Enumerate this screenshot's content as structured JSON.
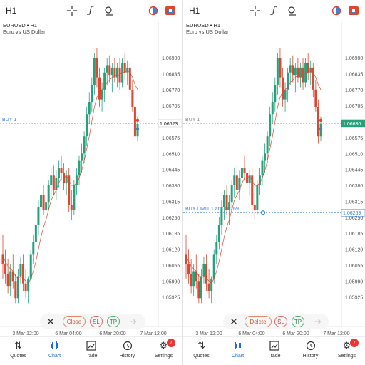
{
  "screens": [
    {
      "timeframe": "H1",
      "symbol": "EURUSD • H1",
      "description": "Euro vs US Dollar",
      "buy_line_label": "BUY 1",
      "buy_limit_label": "",
      "current_price_label": "1.06623",
      "buy_limit_price_label": "",
      "actions": {
        "primary": "Close",
        "sl": "SL",
        "tp": "TP"
      }
    },
    {
      "timeframe": "H1",
      "symbol": "EURUSD • H1",
      "description": "Euro vs US Dollar",
      "buy_line_label": "BUY 1",
      "buy_limit_label": "BUY LIMIT 1 at 1.06269",
      "current_price_label": "1.06630",
      "buy_limit_price_label": "1.06269",
      "actions": {
        "primary": "Delete",
        "sl": "SL",
        "tp": "TP"
      }
    }
  ],
  "nav": {
    "items": [
      {
        "label": "Quotes",
        "icon": "quotes-icon"
      },
      {
        "label": "Chart",
        "icon": "chart-icon"
      },
      {
        "label": "Trade",
        "icon": "trade-icon"
      },
      {
        "label": "History",
        "icon": "history-icon"
      },
      {
        "label": "Settings",
        "icon": "settings-icon"
      }
    ],
    "active": "Chart",
    "settings_badge": "7"
  },
  "colors": {
    "bull": "#26a17b",
    "bear": "#e0452f",
    "buy_line": "#3b82d6",
    "ma_line": "#e0452f",
    "price_box": "#26a17b",
    "accent": "#1f6ed4"
  },
  "chart_data": {
    "type": "candlestick",
    "y_tick_labels": [
      "1.06900",
      "1.06835",
      "1.06770",
      "1.06705",
      "1.06640",
      "1.06575",
      "1.06510",
      "1.06445",
      "1.06380",
      "1.06315",
      "1.06250",
      "1.06185",
      "1.06120",
      "1.06055",
      "1.05990",
      "1.05925"
    ],
    "x_tick_labels": [
      "3 Mar 12:00",
      "6 Mar 04:00",
      "6 Mar 20:00",
      "7 Mar 12:00"
    ],
    "ylim": [
      1.0586,
      1.0697
    ],
    "buy_price": 1.06633,
    "buy_limit_price": 1.06269,
    "ohlc": [
      [
        1.061,
        1.0618,
        1.06,
        1.0606
      ],
      [
        1.0606,
        1.0612,
        1.0598,
        1.0602
      ],
      [
        1.0602,
        1.0608,
        1.0594,
        1.0597
      ],
      [
        1.0597,
        1.0606,
        1.0593,
        1.0603
      ],
      [
        1.0603,
        1.061,
        1.0596,
        1.0599
      ],
      [
        1.0599,
        1.0602,
        1.059,
        1.0592
      ],
      [
        1.0592,
        1.0604,
        1.059,
        1.0601
      ],
      [
        1.0601,
        1.0609,
        1.0598,
        1.0606
      ],
      [
        1.0606,
        1.061,
        1.0595,
        1.0598
      ],
      [
        1.0598,
        1.0604,
        1.0592,
        1.0595
      ],
      [
        1.0595,
        1.0601,
        1.059,
        1.06
      ],
      [
        1.06,
        1.0612,
        1.0598,
        1.061
      ],
      [
        1.061,
        1.0618,
        1.0606,
        1.0615
      ],
      [
        1.0615,
        1.0625,
        1.0612,
        1.0622
      ],
      [
        1.0622,
        1.0632,
        1.0618,
        1.0629
      ],
      [
        1.0629,
        1.0636,
        1.0624,
        1.0634
      ],
      [
        1.0634,
        1.0638,
        1.0626,
        1.0628
      ],
      [
        1.0628,
        1.0634,
        1.0622,
        1.0631
      ],
      [
        1.0631,
        1.064,
        1.0628,
        1.0638
      ],
      [
        1.0638,
        1.0645,
        1.0633,
        1.0642
      ],
      [
        1.0642,
        1.0646,
        1.0634,
        1.0636
      ],
      [
        1.0636,
        1.0644,
        1.0632,
        1.0641
      ],
      [
        1.0641,
        1.0648,
        1.0637,
        1.0645
      ],
      [
        1.0645,
        1.065,
        1.064,
        1.0643
      ],
      [
        1.0643,
        1.0647,
        1.0636,
        1.0639
      ],
      [
        1.0639,
        1.0644,
        1.0634,
        1.0642
      ],
      [
        1.0642,
        1.0645,
        1.0627,
        1.063
      ],
      [
        1.063,
        1.0636,
        1.0624,
        1.0628
      ],
      [
        1.0628,
        1.064,
        1.0626,
        1.0638
      ],
      [
        1.0638,
        1.0645,
        1.0634,
        1.0642
      ],
      [
        1.0642,
        1.065,
        1.0638,
        1.0648
      ],
      [
        1.0648,
        1.0655,
        1.0643,
        1.0651
      ],
      [
        1.0651,
        1.066,
        1.0647,
        1.0658
      ],
      [
        1.0658,
        1.067,
        1.0654,
        1.0667
      ],
      [
        1.0667,
        1.0676,
        1.0663,
        1.0672
      ],
      [
        1.0672,
        1.0682,
        1.0668,
        1.0679
      ],
      [
        1.0679,
        1.0692,
        1.0675,
        1.069
      ],
      [
        1.069,
        1.0694,
        1.0678,
        1.0682
      ],
      [
        1.0682,
        1.0686,
        1.067,
        1.0673
      ],
      [
        1.0673,
        1.068,
        1.0668,
        1.0677
      ],
      [
        1.0677,
        1.0686,
        1.0672,
        1.0684
      ],
      [
        1.0684,
        1.069,
        1.0679,
        1.0687
      ],
      [
        1.0687,
        1.0691,
        1.068,
        1.0683
      ],
      [
        1.0683,
        1.0688,
        1.0676,
        1.0686
      ],
      [
        1.0686,
        1.069,
        1.068,
        1.0682
      ],
      [
        1.0682,
        1.0688,
        1.0678,
        1.0686
      ],
      [
        1.0686,
        1.069,
        1.0677,
        1.068
      ],
      [
        1.068,
        1.069,
        1.0678,
        1.0688
      ],
      [
        1.0688,
        1.0692,
        1.0681,
        1.0684
      ],
      [
        1.0684,
        1.0689,
        1.0679,
        1.0686
      ],
      [
        1.0686,
        1.0688,
        1.0674,
        1.0677
      ],
      [
        1.0677,
        1.0681,
        1.0668,
        1.067
      ],
      [
        1.067,
        1.0673,
        1.0655,
        1.0658
      ],
      [
        1.0658,
        1.0666,
        1.0656,
        1.0663
      ]
    ],
    "ma": [
      1.0609,
      1.0607,
      1.0605,
      1.0604,
      1.0603,
      1.0601,
      1.06,
      1.0601,
      1.06,
      1.0599,
      1.0598,
      1.06,
      1.0603,
      1.0607,
      1.0612,
      1.0617,
      1.0621,
      1.0624,
      1.0628,
      1.0632,
      1.0634,
      1.0636,
      1.0639,
      1.0641,
      1.0641,
      1.0642,
      1.064,
      1.0638,
      1.0638,
      1.0639,
      1.0641,
      1.0644,
      1.0648,
      1.0653,
      1.0658,
      1.0664,
      1.067,
      1.0674,
      1.0676,
      1.0677,
      1.0678,
      1.068,
      1.0681,
      1.0682,
      1.0683,
      1.0683,
      1.0683,
      1.0684,
      1.0684,
      1.0685,
      1.0684,
      1.0682,
      1.0679,
      1.0677
    ]
  }
}
